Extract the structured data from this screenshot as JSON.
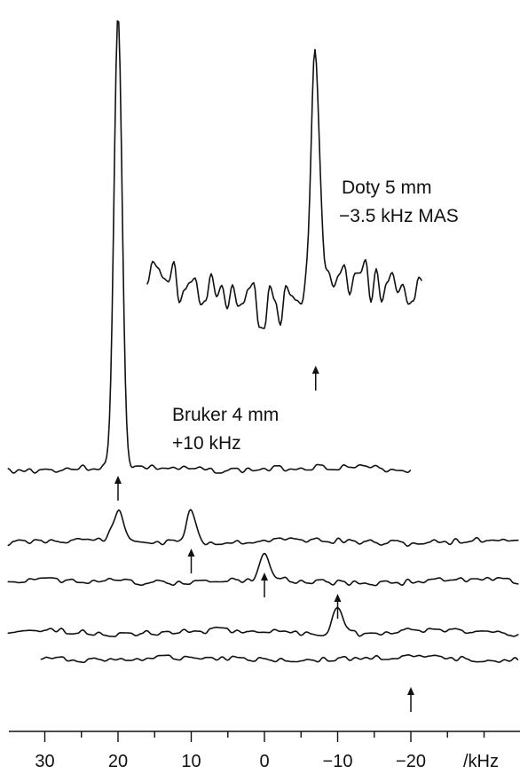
{
  "chart_data": {
    "type": "line",
    "xlabel": "/kHz",
    "xlim": [
      35,
      -35
    ],
    "x_reversed": true,
    "x_ticks": [
      30,
      20,
      10,
      0,
      -10,
      -20
    ],
    "x_tick_labels": [
      "30",
      "20",
      "10",
      "0",
      "−10",
      "−20"
    ],
    "grid": false,
    "legend": "none",
    "annotations": [
      {
        "id": "doty",
        "lines": [
          "Doty 5 mm",
          "−3.5 kHz MAS"
        ]
      },
      {
        "id": "bruker",
        "lines": [
          "Bruker 4 mm",
          "+10 kHz"
        ]
      }
    ],
    "series": [
      {
        "label_ref": "doty",
        "x_range": [
          16,
          -21.5
        ],
        "peaks": [
          {
            "x": -7,
            "height": 1.0
          }
        ],
        "arrow_x": -7
      },
      {
        "label_ref": "bruker",
        "x_range": [
          35,
          -20
        ],
        "peaks": [
          {
            "x": 20,
            "height": 1.0
          }
        ],
        "arrow_x": 20
      },
      {
        "x_range": [
          35,
          -35
        ],
        "peaks": [
          {
            "x": 20,
            "height": 0.08
          },
          {
            "x": 10,
            "height": 0.09
          }
        ],
        "arrow_x": 10
      },
      {
        "x_range": [
          35,
          -35
        ],
        "peaks": [
          {
            "x": 0,
            "height": 0.08
          }
        ],
        "arrow_x": 0
      },
      {
        "x_range": [
          35,
          -35
        ],
        "peaks": [
          {
            "x": -10,
            "height": 0.08
          }
        ],
        "arrow_x": -10
      },
      {
        "x_range": [
          30.5,
          -35
        ],
        "peaks": [],
        "arrow_x": -20
      }
    ]
  }
}
